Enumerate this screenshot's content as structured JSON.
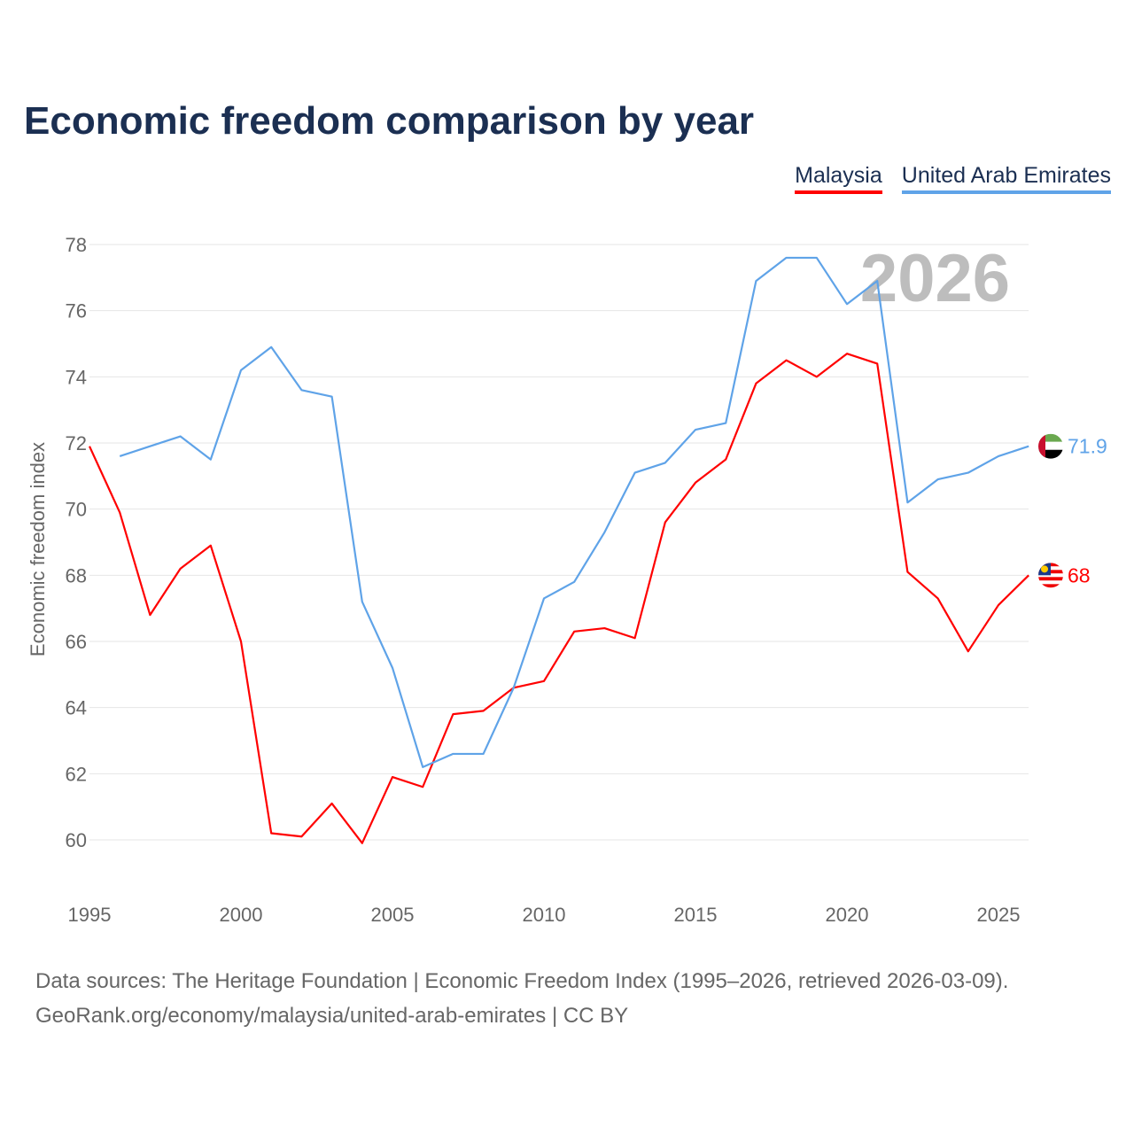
{
  "chart_data": {
    "type": "line",
    "title": "Economic freedom comparison by year",
    "ylabel": "Economic freedom index",
    "xlabel": "",
    "ylim": [
      58.5,
      78.5
    ],
    "xlim": [
      1995,
      2026
    ],
    "yticks": [
      60,
      62,
      64,
      66,
      68,
      70,
      72,
      74,
      76,
      78
    ],
    "xticks": [
      1995,
      2000,
      2005,
      2010,
      2015,
      2020,
      2025
    ],
    "grid": true,
    "legend_position": "top-right",
    "year_label": "2026",
    "series": [
      {
        "name": "Malaysia",
        "color": "#ff0000",
        "end_label": "68",
        "start": 1995,
        "values": [
          71.9,
          69.9,
          66.8,
          68.2,
          68.9,
          66.0,
          60.2,
          60.1,
          61.1,
          59.9,
          61.9,
          61.6,
          63.8,
          63.9,
          64.6,
          64.8,
          66.3,
          66.4,
          66.1,
          69.6,
          70.8,
          71.5,
          73.8,
          74.5,
          74.0,
          74.7,
          74.4,
          68.1,
          67.3,
          65.7,
          67.1,
          68.0
        ]
      },
      {
        "name": "United Arab Emirates",
        "color": "#5fa3e8",
        "end_label": "71.9",
        "start": 1996,
        "values": [
          71.6,
          71.9,
          72.2,
          71.5,
          74.2,
          74.9,
          73.6,
          73.4,
          67.2,
          65.2,
          62.2,
          62.6,
          62.6,
          64.6,
          67.3,
          67.8,
          69.3,
          71.1,
          71.4,
          72.4,
          72.6,
          76.9,
          77.6,
          77.6,
          76.2,
          76.9,
          70.2,
          70.9,
          71.1,
          71.6,
          71.9
        ]
      }
    ]
  },
  "source": {
    "line1": "Data sources: The Heritage Foundation | Economic Freedom Index (1995–2026, retrieved 2026-03-09).",
    "line2": "GeoRank.org/economy/malaysia/united-arab-emirates | CC BY"
  }
}
